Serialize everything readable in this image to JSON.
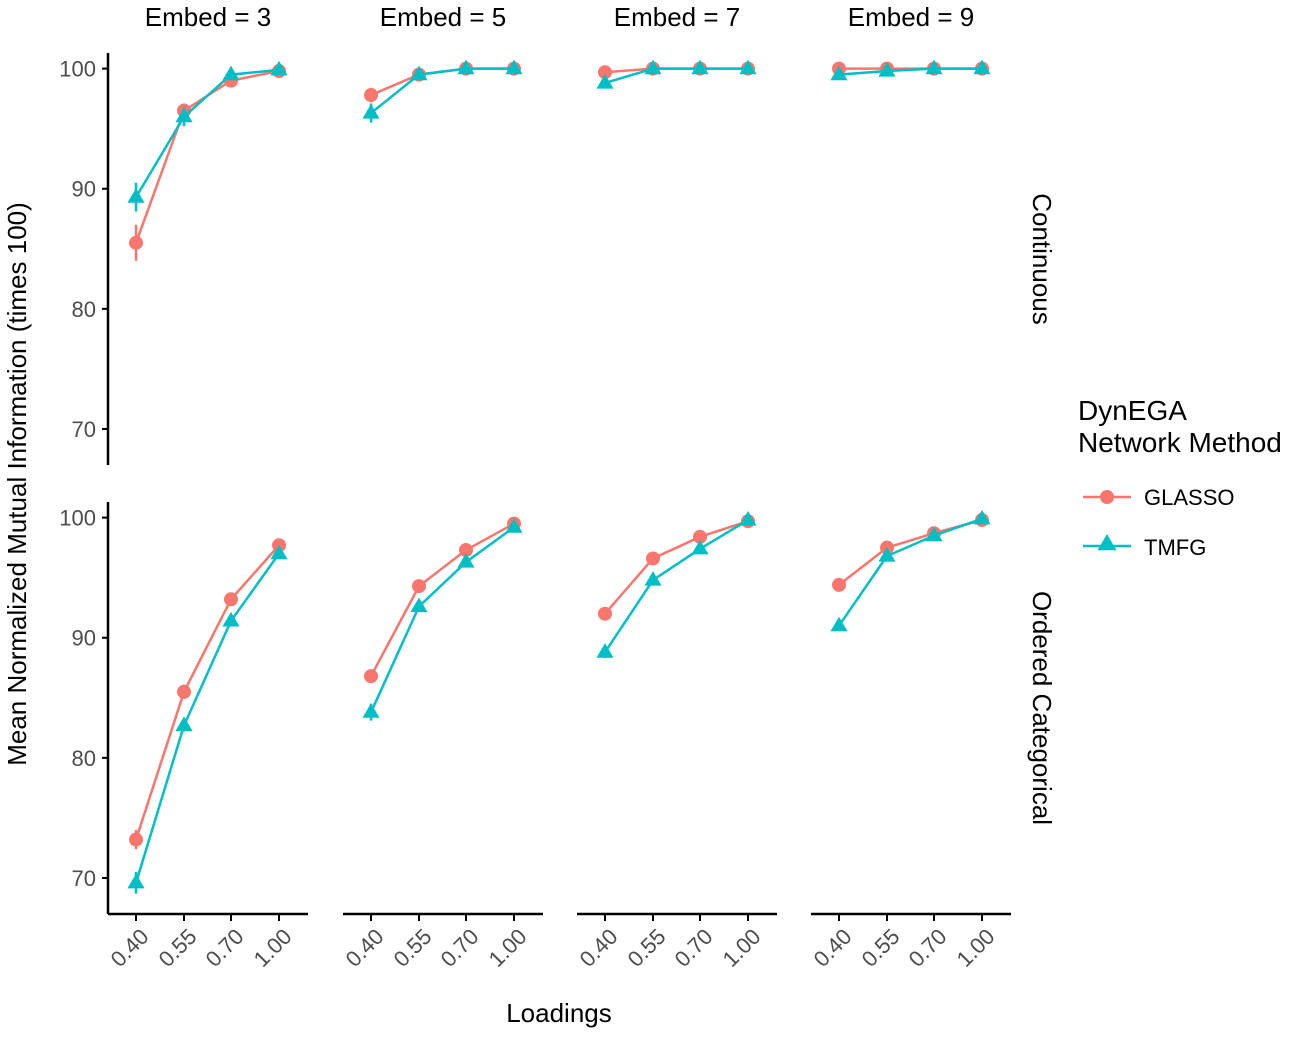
{
  "chart_data": {
    "type": "line",
    "xlabel": "Loadings",
    "ylabel": "Mean Normalized Mutual Information (times 100)",
    "x": [
      "0.40",
      "0.55",
      "0.70",
      "1.00"
    ],
    "yticks": [
      "70",
      "80",
      "90",
      "100"
    ],
    "ylim": [
      67,
      101.3
    ],
    "grid": false,
    "legend": {
      "title_line1": "DynEGA",
      "title_line2": "Network Method",
      "placement": "right",
      "entries": [
        "GLASSO",
        "TMFG"
      ]
    },
    "colors": {
      "GLASSO": "#F8766D",
      "TMFG": "#00BFC4"
    },
    "columns": [
      "Embed = 3",
      "Embed = 5",
      "Embed = 7",
      "Embed = 9"
    ],
    "rows": [
      "Continuous",
      "Ordered Categorical"
    ],
    "panels": [
      {
        "row": 0,
        "col": 0,
        "series": [
          {
            "name": "GLASSO",
            "values": [
              85.5,
              96.5,
              99.0,
              99.8
            ],
            "err": [
              1.5,
              0.6,
              0.2,
              0.1
            ]
          },
          {
            "name": "TMFG",
            "values": [
              89.3,
              96.0,
              99.5,
              99.9
            ],
            "err": [
              1.2,
              0.8,
              0.2,
              0.1
            ]
          }
        ]
      },
      {
        "row": 0,
        "col": 1,
        "series": [
          {
            "name": "GLASSO",
            "values": [
              97.8,
              99.5,
              100.0,
              100.0
            ],
            "err": [
              0.6,
              0.2,
              0.0,
              0.0
            ]
          },
          {
            "name": "TMFG",
            "values": [
              96.3,
              99.5,
              100.0,
              100.0
            ],
            "err": [
              0.8,
              0.2,
              0.0,
              0.0
            ]
          }
        ]
      },
      {
        "row": 0,
        "col": 2,
        "series": [
          {
            "name": "GLASSO",
            "values": [
              99.7,
              100.0,
              100.0,
              100.0
            ],
            "err": [
              0.2,
              0.0,
              0.0,
              0.0
            ]
          },
          {
            "name": "TMFG",
            "values": [
              98.8,
              100.0,
              100.0,
              100.0
            ],
            "err": [
              0.3,
              0.0,
              0.0,
              0.0
            ]
          }
        ]
      },
      {
        "row": 0,
        "col": 3,
        "series": [
          {
            "name": "GLASSO",
            "values": [
              100.0,
              100.0,
              100.0,
              100.0
            ],
            "err": [
              0.0,
              0.0,
              0.0,
              0.0
            ]
          },
          {
            "name": "TMFG",
            "values": [
              99.5,
              99.8,
              100.0,
              100.0
            ],
            "err": [
              0.2,
              0.1,
              0.0,
              0.0
            ]
          }
        ]
      },
      {
        "row": 1,
        "col": 0,
        "series": [
          {
            "name": "GLASSO",
            "values": [
              73.2,
              85.5,
              93.2,
              97.7
            ],
            "err": [
              0.8,
              0.6,
              0.3,
              0.2
            ]
          },
          {
            "name": "TMFG",
            "values": [
              69.6,
              82.7,
              91.4,
              97.0
            ],
            "err": [
              0.9,
              0.5,
              0.4,
              0.2
            ]
          }
        ]
      },
      {
        "row": 1,
        "col": 1,
        "series": [
          {
            "name": "GLASSO",
            "values": [
              86.8,
              94.3,
              97.3,
              99.5
            ],
            "err": [
              0.5,
              0.3,
              0.2,
              0.1
            ]
          },
          {
            "name": "TMFG",
            "values": [
              83.8,
              92.6,
              96.3,
              99.2
            ],
            "err": [
              0.7,
              0.4,
              0.2,
              0.1
            ]
          }
        ]
      },
      {
        "row": 1,
        "col": 2,
        "series": [
          {
            "name": "GLASSO",
            "values": [
              92.0,
              96.6,
              98.4,
              99.7
            ],
            "err": [
              0.3,
              0.2,
              0.1,
              0.1
            ]
          },
          {
            "name": "TMFG",
            "values": [
              88.8,
              94.8,
              97.4,
              99.8
            ],
            "err": [
              0.5,
              0.3,
              0.2,
              0.1
            ]
          }
        ]
      },
      {
        "row": 1,
        "col": 3,
        "series": [
          {
            "name": "GLASSO",
            "values": [
              94.4,
              97.5,
              98.7,
              99.8
            ],
            "err": [
              0.3,
              0.2,
              0.1,
              0.1
            ]
          },
          {
            "name": "TMFG",
            "values": [
              91.0,
              96.8,
              98.5,
              99.9
            ],
            "err": [
              0.4,
              0.2,
              0.1,
              0.1
            ]
          }
        ]
      }
    ]
  }
}
